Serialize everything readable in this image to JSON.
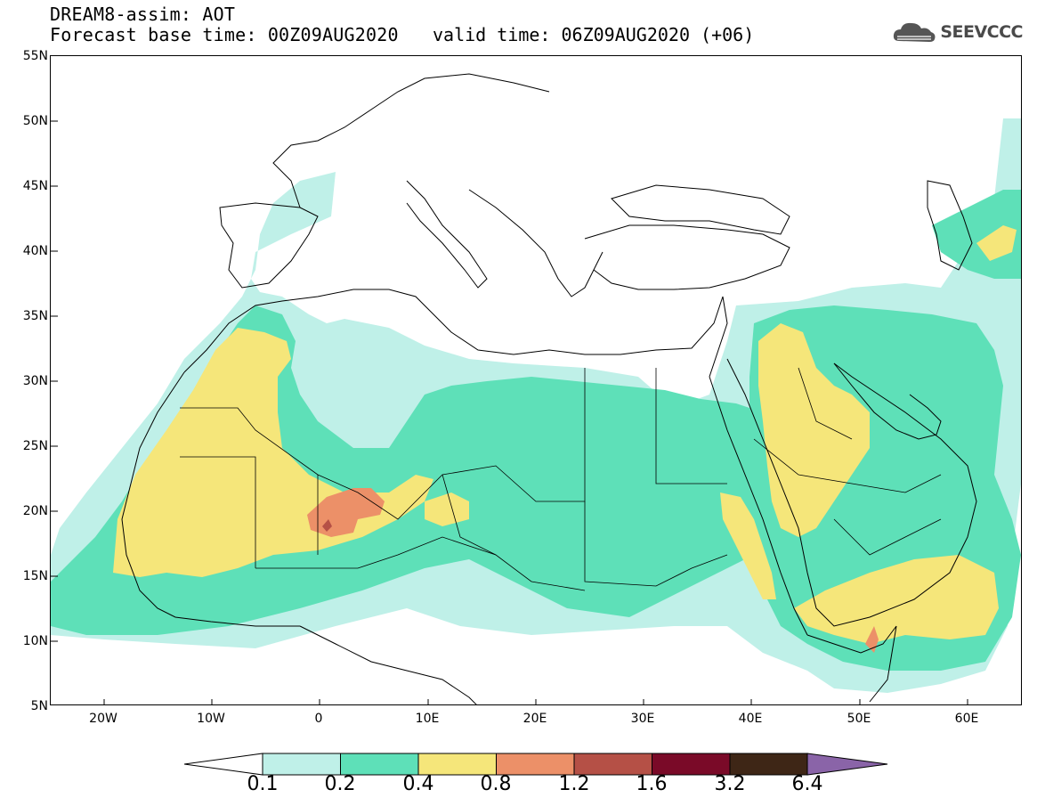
{
  "header": {
    "line1": "DREAM8-assim: AOT",
    "line2": "Forecast base time: 00Z09AUG2020",
    "valid": "valid time: 06Z09AUG2020 (+06)",
    "logo_text": "SEEVCCC"
  },
  "map": {
    "lat_labels": [
      "55N",
      "50N",
      "45N",
      "40N",
      "35N",
      "30N",
      "25N",
      "20N",
      "15N",
      "10N",
      "5N"
    ],
    "lon_labels": [
      "20W",
      "10W",
      "0",
      "10E",
      "20E",
      "30E",
      "40E",
      "50E",
      "60E"
    ],
    "lat_range": [
      5,
      55
    ],
    "lon_range": [
      -25,
      65
    ]
  },
  "legend": {
    "labels": [
      "0.1",
      "0.2",
      "0.4",
      "0.8",
      "1.2",
      "1.6",
      "3.2",
      "6.4"
    ],
    "colors": [
      "#bff0e8",
      "#5ee0b8",
      "#f5e67a",
      "#ec9068",
      "#b55046",
      "#7a0a28",
      "#3e2616",
      "#8a64a8"
    ]
  }
}
